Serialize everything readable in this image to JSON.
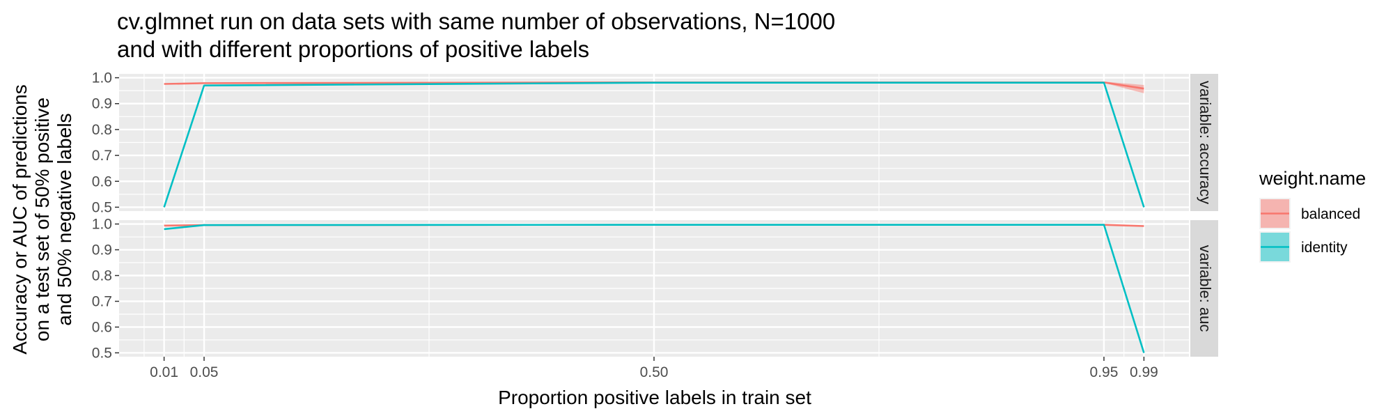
{
  "chart_data": {
    "type": "line",
    "title_lines": [
      "cv.glmnet run on data sets with same number of observations, N=1000",
      "and with different proportions of positive labels"
    ],
    "xlabel": "Proportion positive labels in train set",
    "ylabel_lines": [
      "Accuracy or AUC of predictions",
      "on a test set of 50% positive",
      "and 50% negative labels"
    ],
    "x_ticks": [
      0.01,
      0.05,
      0.5,
      0.95,
      0.99
    ],
    "x_tick_labels": [
      "0.01",
      "0.05",
      "0.50",
      "0.95",
      "0.99"
    ],
    "xlim": [
      -0.035,
      1.035
    ],
    "ylim": [
      0.485,
      1.015
    ],
    "y_ticks": [
      0.5,
      0.6,
      0.7,
      0.8,
      0.9,
      1.0
    ],
    "y_tick_labels": [
      "0.5",
      "0.6",
      "0.7",
      "0.8",
      "0.9",
      "1.0"
    ],
    "x": [
      0.01,
      0.05,
      0.5,
      0.95,
      0.99
    ],
    "legend": {
      "title": "weight.name",
      "position": "right",
      "entries": [
        "balanced",
        "identity"
      ]
    },
    "colors": {
      "balanced": "#F8766D",
      "identity": "#00BFC4"
    },
    "panels": [
      {
        "strip": "variable: accuracy",
        "series": [
          {
            "name": "balanced",
            "values": [
              0.976,
              0.979,
              0.982,
              0.982,
              0.958
            ],
            "lower": [
              0.974,
              0.976,
              0.98,
              0.98,
              0.94
            ],
            "upper": [
              0.978,
              0.982,
              0.984,
              0.985,
              0.972
            ]
          },
          {
            "name": "identity",
            "values": [
              0.5,
              0.97,
              0.981,
              0.981,
              0.5
            ],
            "lower": [
              0.5,
              0.968,
              0.98,
              0.98,
              0.5
            ],
            "upper": [
              0.5,
              0.972,
              0.982,
              0.982,
              0.5
            ]
          }
        ]
      },
      {
        "strip": "variable: auc",
        "series": [
          {
            "name": "balanced",
            "values": [
              0.994,
              0.996,
              0.997,
              0.997,
              0.992
            ],
            "lower": [
              0.993,
              0.995,
              0.996,
              0.996,
              0.99
            ],
            "upper": [
              0.995,
              0.997,
              0.998,
              0.998,
              0.994
            ]
          },
          {
            "name": "identity",
            "values": [
              0.98,
              0.996,
              0.997,
              0.997,
              0.5
            ],
            "lower": [
              0.979,
              0.995,
              0.996,
              0.996,
              0.5
            ],
            "upper": [
              0.981,
              0.997,
              0.998,
              0.998,
              0.5
            ]
          }
        ]
      }
    ]
  }
}
